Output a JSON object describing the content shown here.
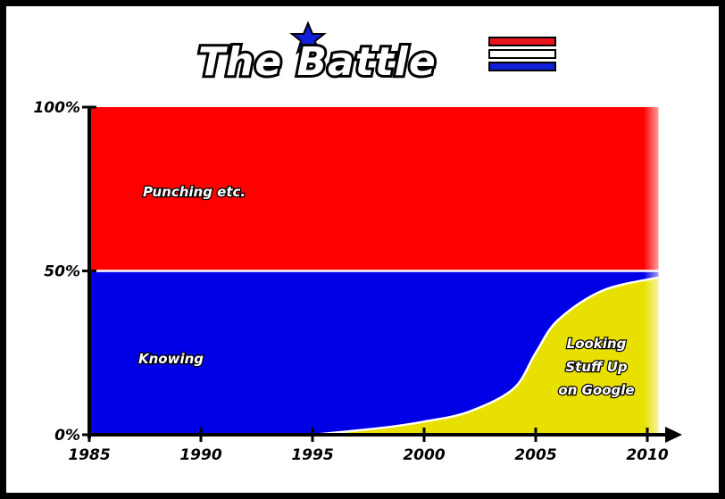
{
  "chart_data": {
    "type": "area",
    "title": "The Battle",
    "xlabel": "",
    "ylabel": "",
    "x_range": [
      1985,
      2010
    ],
    "ylim": [
      0,
      100
    ],
    "x_ticks": [
      "1985",
      "1990",
      "1995",
      "2000",
      "2005",
      "2010"
    ],
    "y_ticks": [
      "0%",
      "50%",
      "100%"
    ],
    "grid": false,
    "series": [
      {
        "name": "Looking Stuff Up on Google",
        "label_lines": [
          "Looking",
          "Stuff Up",
          "on Google"
        ],
        "color": "#e8e000",
        "x": [
          1995,
          1998,
          2000,
          2002,
          2004,
          2005,
          2006,
          2008,
          2010.5
        ],
        "values": [
          0,
          2,
          4,
          7,
          14,
          25,
          35,
          44,
          48
        ]
      },
      {
        "name": "Knowing",
        "label_lines": [
          "Knowing"
        ],
        "color": "#0000e6",
        "x": [
          1985,
          1995,
          1998,
          2000,
          2002,
          2004,
          2005,
          2006,
          2008,
          2010.5
        ],
        "values": [
          50,
          50,
          48,
          46,
          43,
          36,
          25,
          15,
          6,
          2
        ]
      },
      {
        "name": "Punching etc.",
        "label_lines": [
          "Punching etc."
        ],
        "color": "#ff0000",
        "x": [
          1985,
          2010.5
        ],
        "values": [
          50,
          50
        ]
      }
    ]
  }
}
